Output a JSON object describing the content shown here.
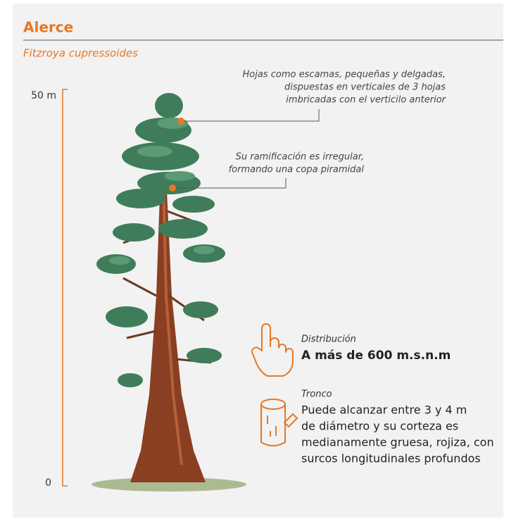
{
  "header": {
    "title": "Alerce",
    "subtitle": "Fitzroya cupressoides"
  },
  "scale": {
    "top": "50 m",
    "bottom": "0"
  },
  "annotations": [
    {
      "lines": [
        "Hojas como escamas, pequeñas y delgadas,",
        "dispuestas en verticales de 3 hojas",
        "imbricadas con el verticilo anterior"
      ]
    },
    {
      "lines": [
        "Su ramificación es irregular,",
        "formando una copa piramidal"
      ]
    }
  ],
  "facts": [
    {
      "label": "Distribución",
      "lines": [
        "A más de 600 m.s.n.m"
      ]
    },
    {
      "label": "Tronco",
      "lines": [
        "Puede alcanzar entre 3 y 4 m",
        "de diámetro y su corteza es",
        "medianamente gruesa, rojiza, con",
        "surcos longitudinales profundos"
      ]
    }
  ]
}
